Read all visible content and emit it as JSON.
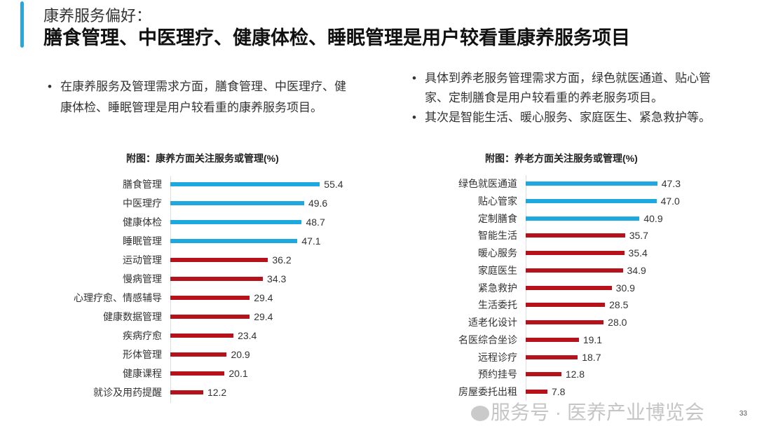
{
  "header": {
    "subtitle": "康养服务偏好：",
    "title": "膳食管理、中医理疗、健康体检、睡眠管理是用户较看重康养服务项目"
  },
  "left_bullets": [
    "在康养服务及管理需求方面，膳食管理、中医理疗、健康体检、睡眠管理是用户较看重的康养服务项目。"
  ],
  "right_bullets": [
    "具体到养老服务管理需求方面，绿色就医通道、贴心管家、定制膳食是用户较看重的养老服务项目。",
    "其次是智能生活、暖心服务、家庭医生、紧急救护等。"
  ],
  "colors": {
    "highlight": "#1fa8df",
    "other": "#b5121b"
  },
  "chart_data": [
    {
      "type": "bar",
      "orientation": "horizontal",
      "title": "附图：康养方面关注服务或管理(%)",
      "highlight_count": 4,
      "categories": [
        "膳食管理",
        "中医理疗",
        "健康体检",
        "睡眠管理",
        "运动管理",
        "慢病管理",
        "心理疗愈、情感辅导",
        "健康数据管理",
        "疾病疗愈",
        "形体管理",
        "健康课程",
        "就诊及用药提醒"
      ],
      "values": [
        55.4,
        49.6,
        48.7,
        47.1,
        36.2,
        34.3,
        29.4,
        29.4,
        23.4,
        20.9,
        20.1,
        12.2
      ]
    },
    {
      "type": "bar",
      "orientation": "horizontal",
      "title": "附图：养老方面关注服务或管理(%)",
      "highlight_count": 3,
      "categories": [
        "绿色就医通道",
        "贴心管家",
        "定制膳食",
        "智能生活",
        "暖心服务",
        "家庭医生",
        "紧急救护",
        "生活委托",
        "适老化设计",
        "名医综合坐诊",
        "远程诊疗",
        "预约挂号",
        "房屋委托出租"
      ],
      "values": [
        47.3,
        47.0,
        40.9,
        35.7,
        35.4,
        34.9,
        30.9,
        28.5,
        28.0,
        19.1,
        18.7,
        12.8,
        7.8
      ]
    }
  ],
  "watermark": "服务号 · 医养产业博览会",
  "page_number": "33"
}
